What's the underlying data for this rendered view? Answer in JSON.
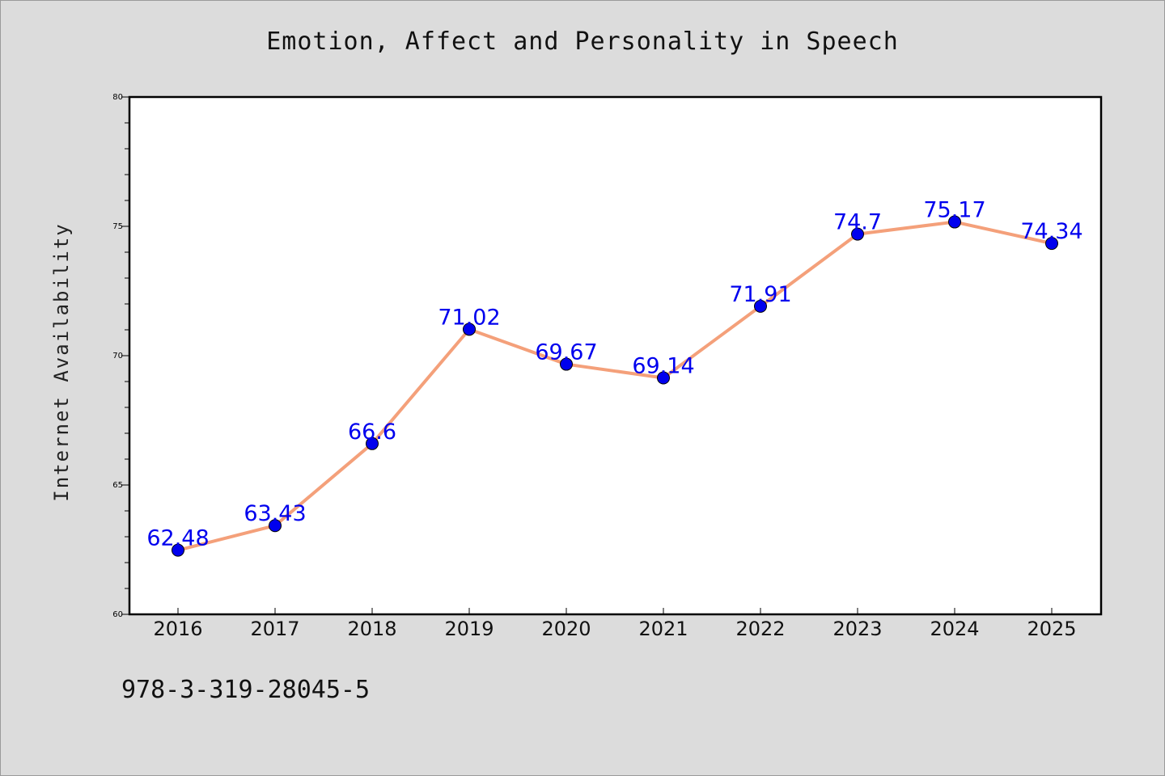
{
  "chart_data": {
    "type": "line",
    "title": "Emotion, Affect and Personality in Speech",
    "xlabel": "",
    "ylabel": "Internet Availability",
    "categories": [
      "2016",
      "2017",
      "2018",
      "2019",
      "2020",
      "2021",
      "2022",
      "2023",
      "2024",
      "2025"
    ],
    "series": [
      {
        "values": [
          62.48,
          63.43,
          66.6,
          71.02,
          69.67,
          69.14,
          71.91,
          74.7,
          75.17,
          74.34
        ],
        "labels": [
          "62.48",
          "63.43",
          "66.6",
          "71.02",
          "69.67",
          "69.14",
          "71.91",
          "74.7",
          "75.17",
          "74.34"
        ],
        "line_color": "#f4a07a",
        "marker_color": "#0000ee"
      }
    ],
    "ylim": [
      60,
      80
    ],
    "yticks": [
      "60",
      "65",
      "70",
      "75",
      "80"
    ],
    "grid": false,
    "legend": "none"
  },
  "footnote": "978-3-319-28045-5"
}
